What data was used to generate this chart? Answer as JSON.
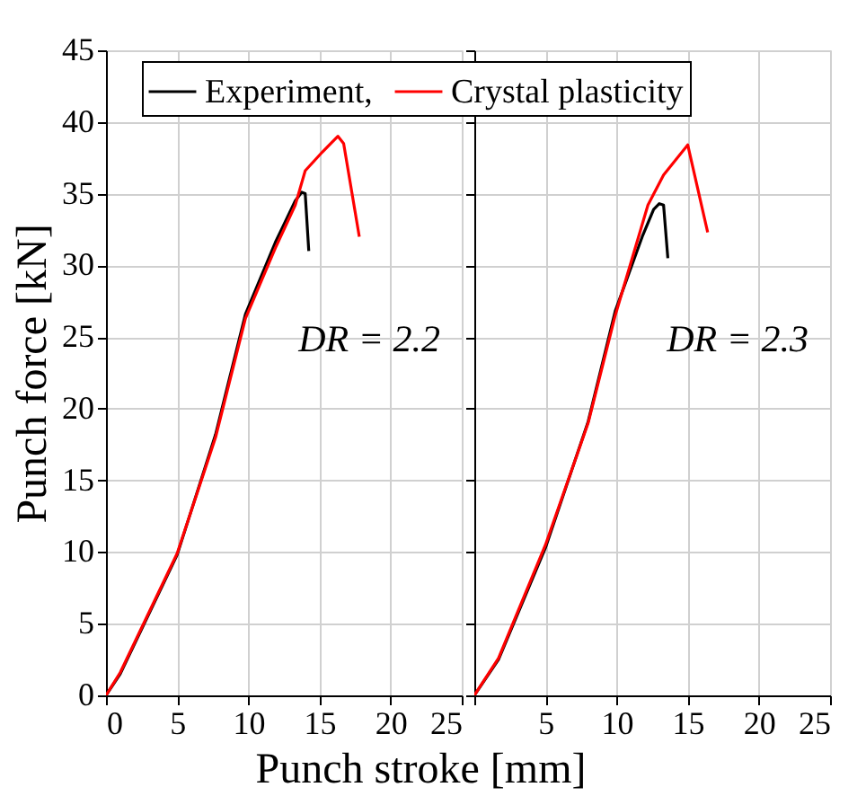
{
  "chart_data": [
    {
      "type": "line",
      "xlabel": "Punch stroke [mm]",
      "ylabel": "Punch force [kN]",
      "xlim": [
        0,
        25
      ],
      "xticks": [
        0,
        5,
        10,
        15,
        20,
        25
      ],
      "ylim": [
        0,
        45
      ],
      "yticks": [
        0,
        5,
        10,
        15,
        20,
        25,
        30,
        35,
        40,
        45
      ],
      "grid": true,
      "legend": "top",
      "annotations": [
        "DR = 2.2"
      ],
      "series": [
        {
          "name": "Experiment,",
          "color": "#000000",
          "x": [
            0,
            1.0,
            5,
            7.7,
            9.8,
            11.9,
            13.3,
            13.75,
            14.0,
            14.25
          ],
          "values": [
            0,
            1.5,
            9.8,
            18.2,
            26.6,
            31.6,
            34.5,
            35.1,
            35.0,
            31.0
          ]
        },
        {
          "name": "Crystal plasticity",
          "color": "#ff0000",
          "x": [
            0,
            1.0,
            5,
            7.7,
            9.8,
            11.9,
            13.3,
            14.0,
            15.2,
            15.8,
            16.3,
            16.7,
            17.8
          ],
          "values": [
            0,
            1.6,
            9.9,
            18.0,
            26.3,
            31.2,
            34.2,
            36.6,
            37.9,
            38.5,
            39.0,
            38.5,
            32.0
          ]
        }
      ]
    },
    {
      "type": "line",
      "xlim": [
        0,
        25
      ],
      "xticks": [
        {
          "value": 0,
          "label": null
        },
        5,
        10,
        15,
        20,
        25
      ],
      "ylim": [
        0,
        45
      ],
      "yticks": [
        0,
        5,
        10,
        15,
        20,
        25,
        30,
        35,
        40,
        45
      ],
      "grid": true,
      "legend": "top",
      "tick_labels": "x",
      "annotations": [
        "DR = 2.3"
      ],
      "series": [
        {
          "name": "Experiment,",
          "color": "#000000",
          "x": [
            0,
            1.7,
            5,
            8,
            9.9,
            11.8,
            12.6,
            13.0,
            13.3,
            13.6
          ],
          "values": [
            0,
            2.5,
            10.3,
            19.1,
            26.8,
            32.0,
            33.9,
            34.3,
            34.2,
            30.5
          ]
        },
        {
          "name": "Crystal plasticity",
          "color": "#ff0000",
          "x": [
            0,
            1.7,
            5,
            8,
            9.9,
            12.2,
            13.3,
            15.0,
            16.4
          ],
          "values": [
            0,
            2.6,
            10.5,
            19.0,
            26.5,
            34.2,
            36.3,
            38.4,
            32.3
          ]
        }
      ]
    }
  ]
}
